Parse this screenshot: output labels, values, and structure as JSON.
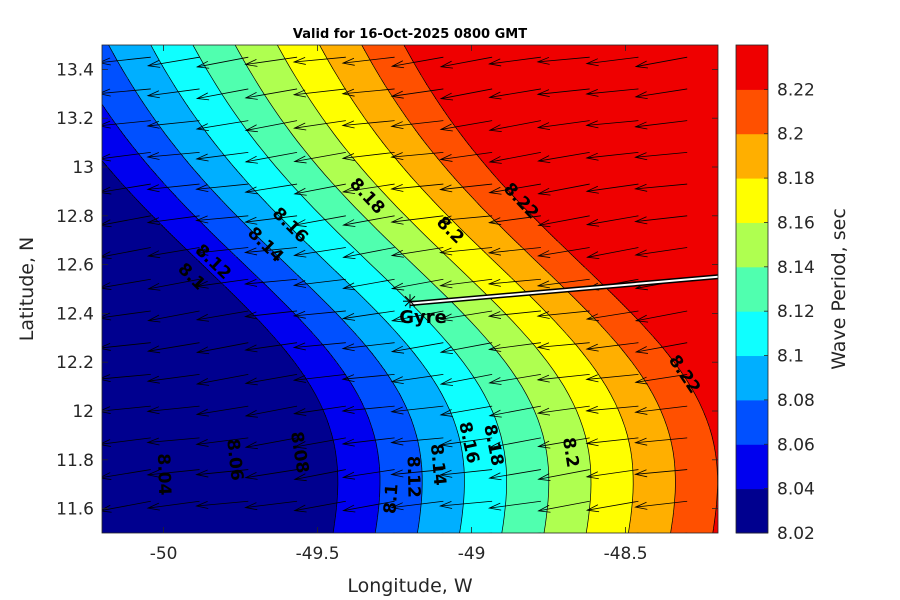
{
  "chart_data": {
    "type": "contour",
    "title": "Valid for 16-Oct-2025 0800 GMT",
    "xlabel": "Longitude, W",
    "ylabel": "Latitude, N",
    "xlim": [
      -50.2,
      -48.2
    ],
    "ylim": [
      11.5,
      13.5
    ],
    "xticks": [
      -50,
      -49.5,
      -49,
      -48.5
    ],
    "xtick_labels": [
      "-50",
      "-49.5",
      "-49",
      "-48.5"
    ],
    "yticks": [
      11.6,
      11.8,
      12.0,
      12.2,
      12.4,
      12.6,
      12.8,
      13.0,
      13.2,
      13.4
    ],
    "ytick_labels": [
      "11.6",
      "11.8",
      "12",
      "12.2",
      "12.4",
      "12.6",
      "12.8",
      "13",
      "13.2",
      "13.4"
    ],
    "colorbar": {
      "label": "Wave Period, sec",
      "levels": [
        8.02,
        8.04,
        8.06,
        8.08,
        8.1,
        8.12,
        8.14,
        8.16,
        8.18,
        8.2,
        8.22,
        8.24
      ],
      "tick_labels": [
        "8.02",
        "8.04",
        "8.06",
        "8.08",
        "8.1",
        "8.12",
        "8.14",
        "8.16",
        "8.18",
        "8.2",
        "8.22"
      ],
      "colors": [
        "#00008f",
        "#0000ef",
        "#0050ff",
        "#00afff",
        "#0fffff",
        "#50ffaf",
        "#afff50",
        "#ffff00",
        "#ffaf00",
        "#ff5000",
        "#ef0000"
      ]
    },
    "field_model": {
      "base": 8.176,
      "slope_x": 0.146,
      "slope_y": 0.05,
      "curve_amp": 0.07,
      "curve_center_y": 12.0,
      "curve_scale": 0.85
    },
    "contour_labels": [
      {
        "text": "8.22",
        "lon": -48.84,
        "lat": 12.86
      },
      {
        "text": "8.2",
        "lon": -49.07,
        "lat": 12.74
      },
      {
        "text": "8.18",
        "lon": -49.34,
        "lat": 12.88
      },
      {
        "text": "8.16",
        "lon": -49.59,
        "lat": 12.76
      },
      {
        "text": "8.14",
        "lon": -49.67,
        "lat": 12.68
      },
      {
        "text": "8.12",
        "lon": -49.84,
        "lat": 12.61
      },
      {
        "text": "8.1",
        "lon": -49.91,
        "lat": 12.55
      },
      {
        "text": "8.22",
        "lon": -48.31,
        "lat": 12.15
      },
      {
        "text": "8.2",
        "lon": -48.68,
        "lat": 11.83
      },
      {
        "text": "8.18",
        "lon": -48.93,
        "lat": 11.86
      },
      {
        "text": "8.16",
        "lon": -49.01,
        "lat": 11.87
      },
      {
        "text": "8.14",
        "lon": -49.11,
        "lat": 11.78
      },
      {
        "text": "8.12",
        "lon": -49.19,
        "lat": 11.73
      },
      {
        "text": "8.1",
        "lon": -49.26,
        "lat": 11.64
      },
      {
        "text": "8.08",
        "lon": -49.56,
        "lat": 11.83
      },
      {
        "text": "8.06",
        "lon": -49.77,
        "lat": 11.8
      },
      {
        "text": "8.04",
        "lon": -50.0,
        "lat": 11.74
      }
    ],
    "station": {
      "label": "Gyre",
      "lon": -49.2,
      "lat": 12.45
    },
    "track": [
      [
        -49.2,
        12.44
      ],
      [
        -48.2,
        12.55
      ]
    ],
    "vectors": {
      "direction": "westward, slightly south",
      "lon_range": [
        -50.2,
        -48.3
      ],
      "lat_range": [
        11.5,
        13.45
      ],
      "nx": 13,
      "ny": 16
    }
  }
}
